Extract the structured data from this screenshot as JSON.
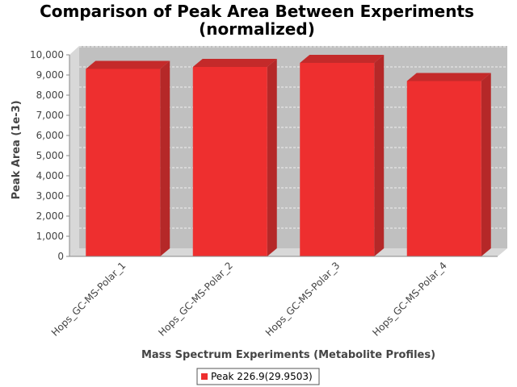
{
  "chart_data": {
    "type": "bar",
    "title_line1": "Comparison of Peak Area Between Experiments",
    "title_line2": "(normalized)",
    "xlabel": "Mass Spectrum Experiments (Metabolite Profiles)",
    "ylabel": "Peak Area (1e-3)",
    "categories": [
      "Hops_GC-MS-Polar_1",
      "Hops_GC-MS-Polar_2",
      "Hops_GC-MS-Polar_3",
      "Hops_GC-MS-Polar_4"
    ],
    "series": [
      {
        "name": "Peak 226.9(29.9503)",
        "values": [
          9300,
          9400,
          9600,
          8700
        ]
      }
    ],
    "ylim": [
      0,
      10000
    ],
    "yticks": [
      0,
      1000,
      2000,
      3000,
      4000,
      5000,
      6000,
      7000,
      8000,
      9000,
      10000
    ],
    "ytick_labels": [
      "0",
      "1,000",
      "2,000",
      "3,000",
      "4,000",
      "5,000",
      "6,000",
      "7,000",
      "8,000",
      "9,000",
      "10,000"
    ],
    "grid": true,
    "legend_position": "bottom",
    "colors": {
      "bar_front": "#ee2f2f",
      "bar_side": "#b52828",
      "bar_top": "#c42a2a",
      "plot_back": "#c0c0c0",
      "plot_floor": "#d8d8d8"
    }
  }
}
